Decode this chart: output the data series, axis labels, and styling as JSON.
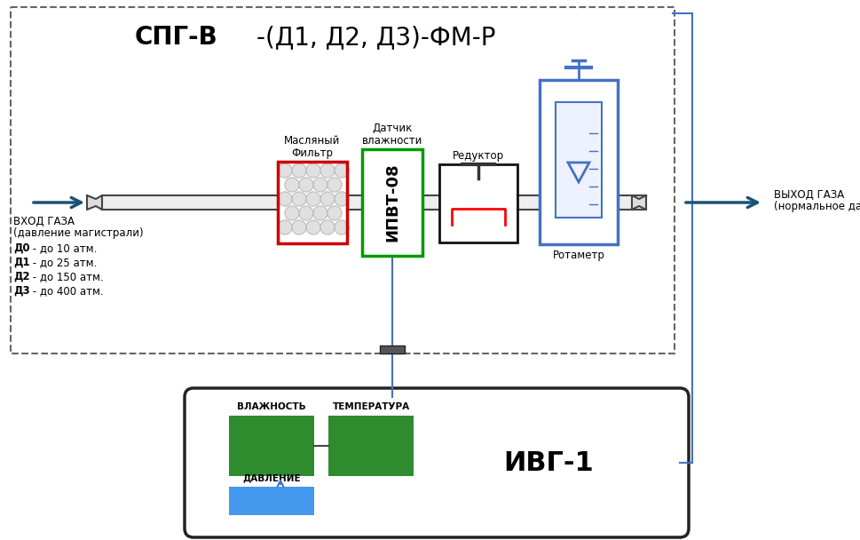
{
  "bg_color": "#ffffff",
  "title_bold": "СПГ-В",
  "title_normal": "-(Д1, Д2, Д3)-ФМ-Р",
  "arrow_color": "#1a5276",
  "filter_border": "#cc0000",
  "sensor_border": "#009900",
  "rotameter_border": "#4472c4",
  "reducer_border": "#111111",
  "green_color": "#2e8b2e",
  "blue_color": "#4499ee",
  "dashed_border": "#666666",
  "pipe_color": "#555555",
  "cable_color": "#4472c4",
  "inlet_line1": "ВХОД ГАЗА",
  "inlet_line2": "(давление магистрали)",
  "inlet_bold": [
    "Д0",
    "Д1",
    "Д2",
    "Д3"
  ],
  "inlet_rest": [
    " - до 10 атм.",
    " - до 25 атм.",
    " - до 150 атм.",
    " - до 400 атм."
  ],
  "outlet_line1": "ВЫХОД ГАЗА",
  "outlet_line2": "(нормальное давление )",
  "filter_label1": "Масляный",
  "filter_label2": "Фильтр",
  "sensor_label1": "Датчик",
  "sensor_label2": "влажности",
  "sensor_text": "ИПВТ-08",
  "reducer_label": "Редуктор",
  "rotameter_label": "Ротаметр",
  "ivg_label": "ИВГ-1",
  "humidity_label": "ВЛАЖНОСТЬ",
  "temperature_label": "ТЕМПЕРАТУРА",
  "pressure_label": "ДАВЛЕНИЕ"
}
